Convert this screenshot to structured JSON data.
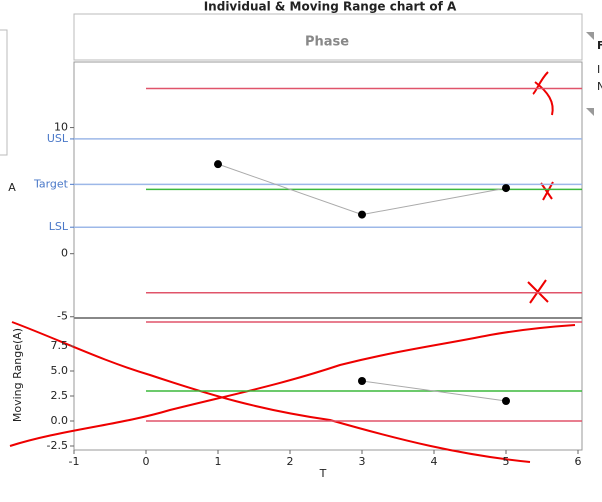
{
  "chart_data": [
    {
      "type": "line",
      "title": "Individual & Moving Range chart of A",
      "header": "Phase",
      "y_label": "A",
      "x": [
        1,
        3,
        5
      ],
      "values": [
        7.1,
        3.1,
        5.2
      ],
      "xlim": [
        -1,
        6
      ],
      "ylim": [
        -5.1,
        15.2
      ],
      "yticks": [
        10,
        0,
        -5
      ],
      "reference_lines": [
        {
          "label": "USL",
          "value": 9.1
        },
        {
          "label": "Target",
          "value": 5.5
        },
        {
          "label": "LSL",
          "value": 2.1
        }
      ],
      "reference_color": "#9db8e8",
      "control_limits": {
        "upper": 13.1,
        "center": 5.1,
        "lower": -3.1
      },
      "limit_color": "#e0546a",
      "center_color": "#3cb83c",
      "point_color": "#000000",
      "connector_color": "#aaaaaa"
    },
    {
      "type": "line",
      "y_label": "Moving Range(A)",
      "x_label": "T",
      "x": [
        3,
        5
      ],
      "values": [
        4.0,
        2.0
      ],
      "xlim": [
        -1,
        6
      ],
      "ylim": [
        -2.9,
        10.3
      ],
      "xticks": [
        -1,
        0,
        1,
        2,
        3,
        4,
        5,
        6
      ],
      "yticks": [
        7.5,
        {
          "value": 5,
          "label": "5.0"
        },
        2.5,
        {
          "value": 0,
          "label": "0.0"
        },
        -2.5
      ],
      "control_limits": {
        "upper": 9.9,
        "center": 3.0,
        "lower": 0
      },
      "limit_color": "#e0546a",
      "center_color": "#3cb83c",
      "point_color": "#000000",
      "connector_color": "#aaaaaa"
    }
  ],
  "side_panel": [
    "F",
    "I",
    "N"
  ]
}
